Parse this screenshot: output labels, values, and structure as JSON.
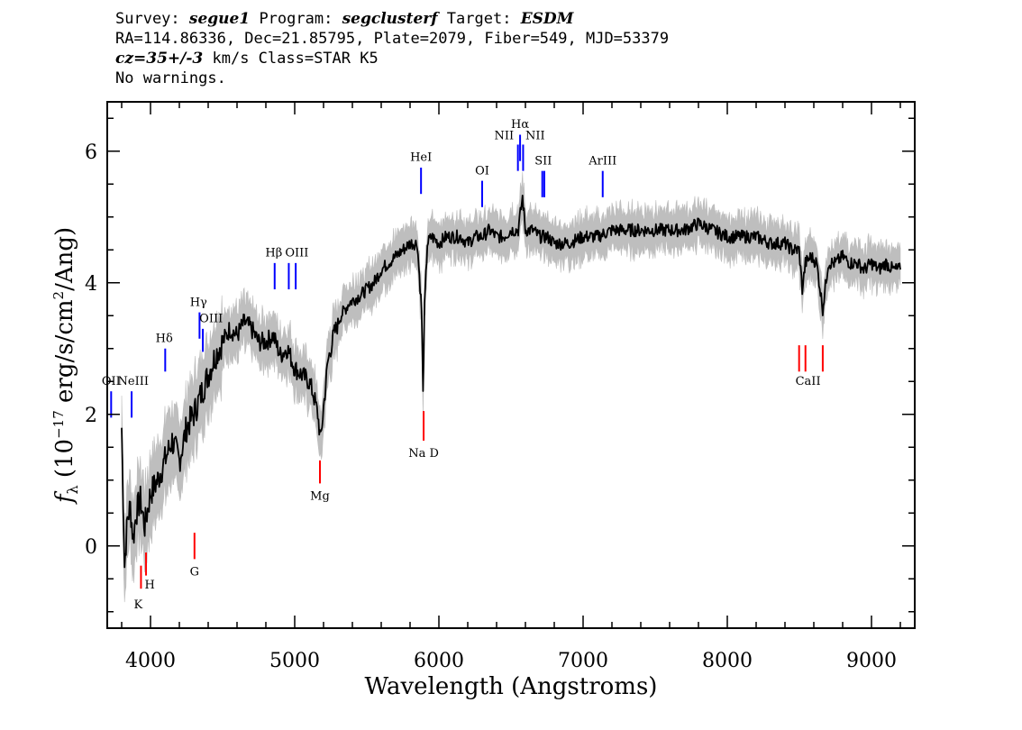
{
  "header": {
    "survey_label": "Survey:",
    "survey": "segue1",
    "program_label": "Program:",
    "program": "segclusterf",
    "target_label": "Target:",
    "target": "ESDM",
    "line2": "RA=114.86336, Dec=21.85795, Plate=2079, Fiber=549, MJD=53379",
    "cz": "cz=35+/-3",
    "line3_rest": " km/s Class=STAR K5",
    "line4": "No warnings."
  },
  "chart_data": {
    "type": "line",
    "title": "",
    "xlabel": "Wavelength (Angstroms)",
    "ylabel": "f_λ (10^-17 erg/s/cm^2/Ang)",
    "xlim": [
      3700,
      9300
    ],
    "ylim": [
      -1.25,
      6.75
    ],
    "x_ticks": [
      4000,
      5000,
      6000,
      7000,
      8000,
      9000
    ],
    "x_tick_labels": [
      "4000",
      "5000",
      "6000",
      "7000",
      "8000",
      "9000"
    ],
    "y_ticks": [
      0,
      2,
      4,
      6
    ],
    "y_tick_labels": [
      "0",
      "2",
      "4",
      "6"
    ],
    "grid": false,
    "series": [
      {
        "color": "#000000",
        "x": [
          3800,
          3820,
          3840,
          3860,
          3880,
          3900,
          3930,
          3960,
          4000,
          4050,
          4100,
          4150,
          4200,
          4250,
          4300,
          4350,
          4400,
          4450,
          4500,
          4550,
          4600,
          4650,
          4700,
          4750,
          4800,
          4850,
          4900,
          4950,
          5000,
          5050,
          5100,
          5130,
          5160,
          5180,
          5200,
          5230,
          5270,
          5320,
          5380,
          5450,
          5500,
          5550,
          5600,
          5650,
          5700,
          5750,
          5800,
          5850,
          5880,
          5890,
          5900,
          5920,
          5950,
          6000,
          6050,
          6100,
          6150,
          6200,
          6250,
          6300,
          6350,
          6400,
          6450,
          6500,
          6550,
          6580,
          6600,
          6650,
          6700,
          6750,
          6800,
          6900,
          7000,
          7100,
          7200,
          7300,
          7400,
          7500,
          7600,
          7700,
          7800,
          7900,
          8000,
          8100,
          8200,
          8300,
          8400,
          8450,
          8498,
          8520,
          8542,
          8580,
          8620,
          8662,
          8700,
          8750,
          8800,
          8850,
          8900,
          8950,
          9000,
          9050,
          9100,
          9150,
          9200
        ],
        "y": [
          1.8,
          -0.3,
          0.4,
          0.6,
          0.1,
          0.5,
          0.7,
          0.3,
          0.8,
          1.0,
          1.3,
          1.6,
          1.3,
          1.8,
          2.0,
          2.3,
          2.6,
          2.9,
          3.1,
          3.3,
          3.2,
          3.4,
          3.3,
          3.1,
          3.1,
          3.2,
          2.9,
          3.0,
          2.7,
          2.6,
          2.5,
          2.3,
          2.0,
          1.6,
          2.1,
          2.8,
          3.2,
          3.5,
          3.7,
          3.8,
          3.9,
          4.0,
          4.2,
          4.3,
          4.4,
          4.5,
          4.6,
          4.6,
          3.6,
          2.3,
          3.6,
          4.6,
          4.7,
          4.6,
          4.7,
          4.7,
          4.7,
          4.6,
          4.7,
          4.7,
          4.8,
          4.7,
          4.7,
          4.8,
          4.8,
          5.3,
          4.8,
          4.8,
          4.7,
          4.7,
          4.6,
          4.6,
          4.7,
          4.7,
          4.8,
          4.8,
          4.8,
          4.8,
          4.8,
          4.8,
          4.9,
          4.8,
          4.7,
          4.7,
          4.7,
          4.6,
          4.6,
          4.5,
          4.5,
          3.9,
          4.3,
          4.4,
          4.3,
          3.6,
          4.3,
          4.3,
          4.4,
          4.3,
          4.3,
          4.2,
          4.3,
          4.2,
          4.3,
          4.2,
          4.2
        ]
      }
    ],
    "emission_lines": [
      {
        "label": "OII",
        "x": 3727,
        "y_lo": 1.95,
        "y_hi": 2.35
      },
      {
        "label": "NeIII",
        "x": 3869,
        "y_lo": 1.95,
        "y_hi": 2.35
      },
      {
        "label": "Hδ",
        "x": 4102,
        "y_lo": 2.65,
        "y_hi": 3.0
      },
      {
        "label": "Hγ",
        "x": 4340,
        "y_lo": 3.15,
        "y_hi": 3.55
      },
      {
        "label": "OIII",
        "x": 4363,
        "y_lo": 2.95,
        "y_hi": 3.3
      },
      {
        "label": "Hβ",
        "x": 4861,
        "y_lo": 3.9,
        "y_hi": 4.3
      },
      {
        "label": "OIII",
        "x": 4959,
        "y_lo": 3.9,
        "y_hi": 4.3
      },
      {
        "label": "OIII",
        "x": 5007,
        "y_lo": 3.9,
        "y_hi": 4.3
      },
      {
        "label": "HeI",
        "x": 5876,
        "y_lo": 5.35,
        "y_hi": 5.75
      },
      {
        "label": "OI",
        "x": 6300,
        "y_lo": 5.15,
        "y_hi": 5.55
      },
      {
        "label": "NII",
        "x": 6548,
        "y_lo": 5.7,
        "y_hi": 6.1
      },
      {
        "label": "Hα",
        "x": 6563,
        "y_lo": 5.85,
        "y_hi": 6.25
      },
      {
        "label": "NII",
        "x": 6584,
        "y_lo": 5.7,
        "y_hi": 6.1
      },
      {
        "label": "SII",
        "x": 6717,
        "y_lo": 5.3,
        "y_hi": 5.7
      },
      {
        "label": "SII",
        "x": 6731,
        "y_lo": 5.3,
        "y_hi": 5.7
      },
      {
        "label": "ArIII",
        "x": 7136,
        "y_lo": 5.3,
        "y_hi": 5.7
      }
    ],
    "absorption_lines": [
      {
        "label": "K",
        "x": 3934,
        "y_lo": -0.65,
        "y_hi": -0.3
      },
      {
        "label": "H",
        "x": 3969,
        "y_lo": -0.45,
        "y_hi": -0.1
      },
      {
        "label": "G",
        "x": 4305,
        "y_lo": -0.2,
        "y_hi": 0.2
      },
      {
        "label": "Mg",
        "x": 5175,
        "y_lo": 0.95,
        "y_hi": 1.3
      },
      {
        "label": "Na D",
        "x": 5894,
        "y_lo": 1.6,
        "y_hi": 2.05
      },
      {
        "label": "CaII",
        "x": 8498,
        "y_lo": 2.65,
        "y_hi": 3.05
      },
      {
        "label": "CaII",
        "x": 8542,
        "y_lo": 2.65,
        "y_hi": 3.05
      },
      {
        "label": "CaII",
        "x": 8662,
        "y_lo": 2.65,
        "y_hi": 3.05
      }
    ],
    "label_texts": {
      "OII": "OII",
      "NeIII": "NeIII",
      "Hd": "Hδ",
      "Hg": "Hγ",
      "OIII_a": "OIII",
      "Hb": "Hβ",
      "OIII_b": "OIII",
      "HeI": "HeI",
      "OI": "OI",
      "NII_a": "NII",
      "Ha": "Hα",
      "NII_b": "NII",
      "SII": "SII",
      "ArIII": "ArIII",
      "K": "K",
      "H": "H",
      "G": "G",
      "Mg": "Mg",
      "NaD": "Na D",
      "CaII": "CaII"
    },
    "colors": {
      "spectrum": "#000000",
      "error": "#bebebe",
      "emission": "#0000ff",
      "absorption": "#ff0000"
    }
  }
}
